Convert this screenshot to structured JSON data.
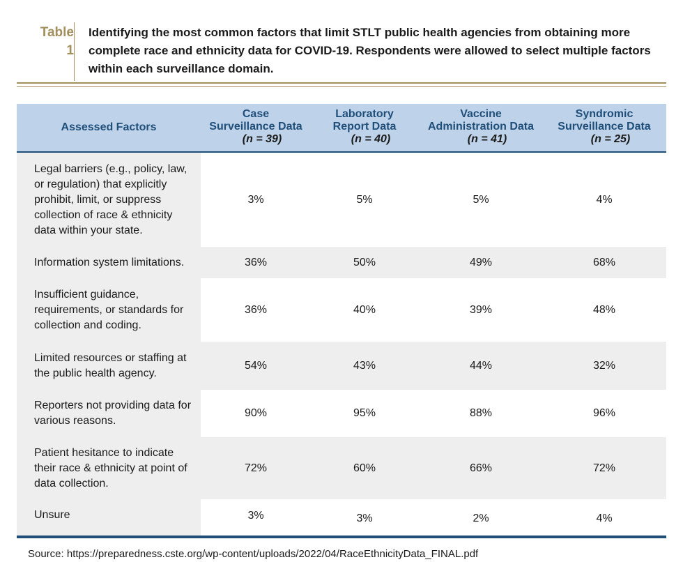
{
  "caption": {
    "label": "Table\n1",
    "text": "Identifying the most common factors that limit STLT public health agencies from obtaining more complete race and ethnicity data for COVID-19. Respondents were allowed to select multiple factors within each surveillance domain."
  },
  "table": {
    "factor_header": "Assessed Factors",
    "columns": [
      {
        "title": "Case\nSurveillance Data",
        "n": "(n = 39)"
      },
      {
        "title": "Laboratory\nReport Data",
        "n": "(n = 40)"
      },
      {
        "title": "Vaccine\nAdministration Data",
        "n": "(n = 41)"
      },
      {
        "title": "Syndromic\nSurveillance Data",
        "n": "(n = 25)"
      }
    ],
    "rows": [
      {
        "factor": "Legal barriers (e.g., policy, law, or regulation) that explicitly prohibit, limit, or suppress collection of race & ethnicity data within your state.",
        "values": [
          "3%",
          "5%",
          "5%",
          "4%"
        ]
      },
      {
        "factor": "Information system limitations.",
        "values": [
          "36%",
          "50%",
          "49%",
          "68%"
        ]
      },
      {
        "factor": "Insufficient guidance, requirements, or standards for collection and coding.",
        "values": [
          "36%",
          "40%",
          "39%",
          "48%"
        ]
      },
      {
        "factor": "Limited resources or staffing at the public health agency.",
        "values": [
          "54%",
          "43%",
          "44%",
          "32%"
        ]
      },
      {
        "factor": "Reporters not providing data for various reasons.",
        "values": [
          "90%",
          "95%",
          "88%",
          "96%"
        ]
      },
      {
        "factor": "Patient hesitance to indicate their race & ethnicity at point of data collection.",
        "values": [
          "72%",
          "60%",
          "66%",
          "72%"
        ]
      },
      {
        "factor": "Unsure",
        "values": [
          "3%",
          "3%",
          "2%",
          "4%"
        ]
      }
    ]
  },
  "source": "Source:  https://preparedness.cste.org/wp-content/uploads/2022/04/RaceEthnicityData_FINAL.pdf",
  "colors": {
    "header_bg": "#bed3ea",
    "header_text": "#1f4e79",
    "gold": "#a38f5d",
    "row_shade": "#eeeeee"
  }
}
